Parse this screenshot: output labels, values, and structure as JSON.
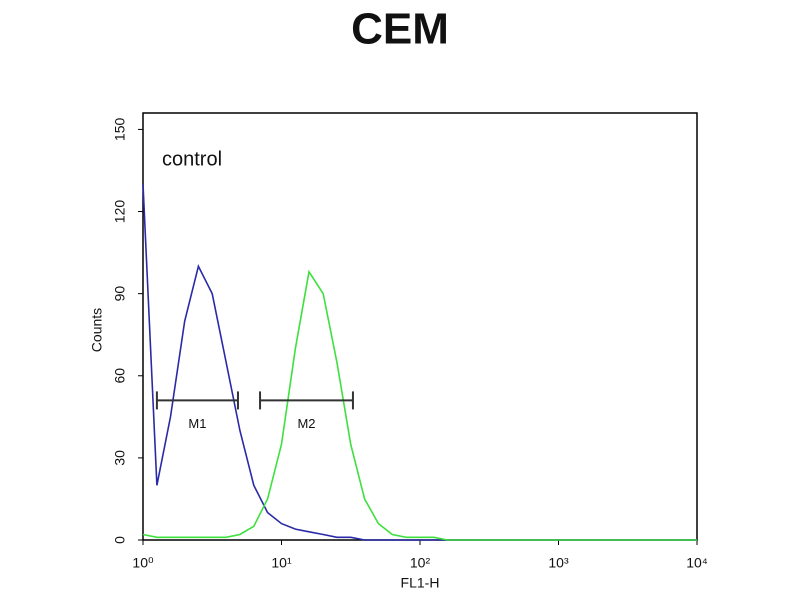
{
  "chart_data": {
    "type": "line",
    "title": "CEM",
    "x_label": "FL1-H",
    "y_label": "Counts",
    "annotation": "control",
    "log_x": true,
    "x": [
      1,
      1.26,
      1.58,
      2,
      2.51,
      3.16,
      3.98,
      5.01,
      6.31,
      7.94,
      10,
      12.6,
      15.8,
      20,
      25.1,
      31.6,
      39.8,
      50.1,
      63.1,
      79.4,
      100,
      126,
      158,
      200,
      251,
      316,
      398,
      501,
      631,
      794,
      1000,
      1260,
      1580,
      2000,
      2510,
      3160,
      3980,
      5010,
      6310,
      7940,
      10000
    ],
    "series": [
      {
        "color": "#2a2aa8",
        "values": [
          130,
          20,
          45,
          80,
          100,
          90,
          65,
          40,
          20,
          10,
          6,
          4,
          3,
          2,
          1,
          1,
          0,
          0,
          0,
          0,
          0,
          0,
          0,
          0,
          0,
          0,
          0,
          0,
          0,
          0,
          0,
          0,
          0,
          0,
          0,
          0,
          0,
          0,
          0,
          0,
          0
        ]
      },
      {
        "color": "#3ee03e",
        "values": [
          2,
          1,
          1,
          1,
          1,
          1,
          1,
          2,
          5,
          15,
          35,
          70,
          98,
          90,
          65,
          35,
          15,
          6,
          2,
          1,
          1,
          1,
          0,
          0,
          0,
          0,
          0,
          0,
          0,
          0,
          0,
          0,
          0,
          0,
          0,
          0,
          0,
          0,
          0,
          0,
          0
        ]
      }
    ],
    "markers": [
      {
        "label": "M1",
        "range": [
          1.26,
          4.85
        ],
        "y": 51
      },
      {
        "label": "M2",
        "range": [
          7,
          32.8
        ],
        "y": 51
      }
    ],
    "xlim": [
      1,
      10000
    ],
    "xticks": [
      {
        "value": 1,
        "label": "10⁰"
      },
      {
        "value": 10,
        "label": "10¹"
      },
      {
        "value": 100,
        "label": "10²"
      },
      {
        "value": 1000,
        "label": "10³"
      },
      {
        "value": 10000,
        "label": "10⁴"
      }
    ],
    "ylim": [
      0,
      156
    ],
    "yticks": [
      0,
      30,
      60,
      90,
      120,
      150
    ],
    "grid": false
  }
}
